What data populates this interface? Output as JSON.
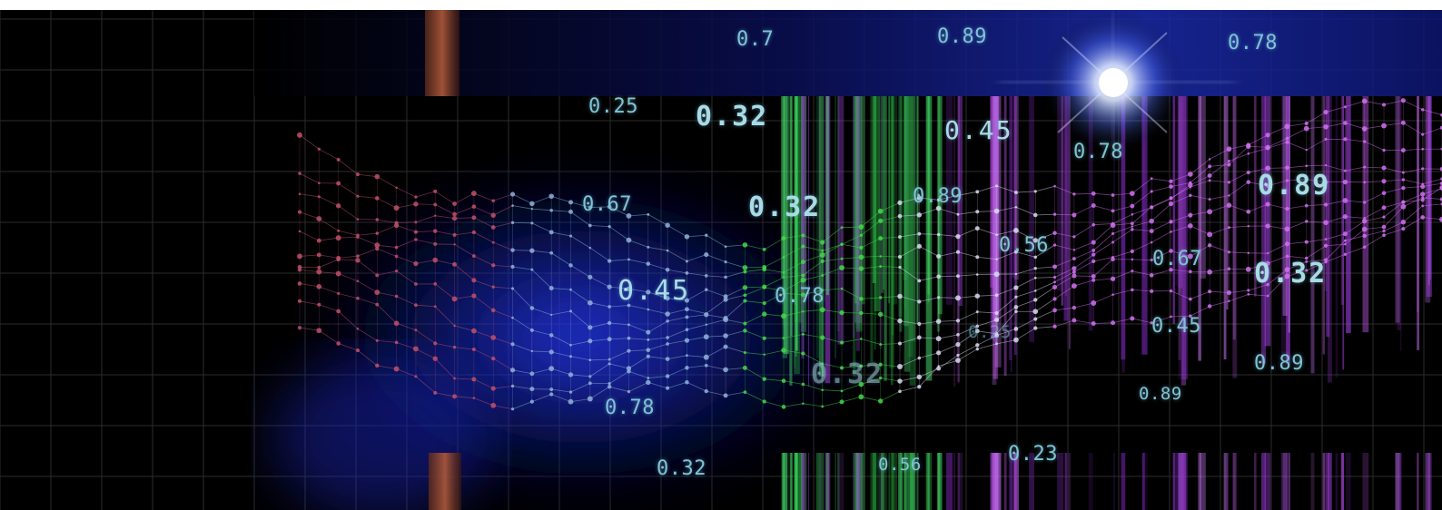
{
  "image": {
    "alt_subject": "abstract data visualization: glowing network wave over dark grid with floating decimal numbers",
    "colors": {
      "background": "#000000",
      "grid": "#2a2a2a",
      "glow_blue": "#1a2cff",
      "magenta": "#c040e0",
      "green": "#39d23a",
      "label": "#7fc3d3"
    },
    "labels": [
      {
        "id": "n1",
        "text": "0.7"
      },
      {
        "id": "n2",
        "text": "0.89"
      },
      {
        "id": "n3",
        "text": "0.78"
      },
      {
        "id": "n4",
        "text": "0.25"
      },
      {
        "id": "n5",
        "text": "0.32"
      },
      {
        "id": "n6",
        "text": "0.45"
      },
      {
        "id": "n7",
        "text": "0.78"
      },
      {
        "id": "n8",
        "text": "0.89"
      },
      {
        "id": "n9",
        "text": "0.67"
      },
      {
        "id": "n10",
        "text": "0.32"
      },
      {
        "id": "n11",
        "text": "0.89"
      },
      {
        "id": "n12",
        "text": "0.56"
      },
      {
        "id": "n13",
        "text": "0.67"
      },
      {
        "id": "n14",
        "text": "0.32"
      },
      {
        "id": "n15",
        "text": "0.45"
      },
      {
        "id": "n16",
        "text": "0.78"
      },
      {
        "id": "n17",
        "text": "0.25"
      },
      {
        "id": "n18",
        "text": "0.45"
      },
      {
        "id": "n19",
        "text": "0.89"
      },
      {
        "id": "n20",
        "text": "0.32"
      },
      {
        "id": "n21",
        "text": "0.89"
      },
      {
        "id": "n22",
        "text": "0.78"
      },
      {
        "id": "n23",
        "text": "0.23"
      },
      {
        "id": "n24",
        "text": "0.32"
      },
      {
        "id": "n25",
        "text": "0.56"
      }
    ]
  }
}
